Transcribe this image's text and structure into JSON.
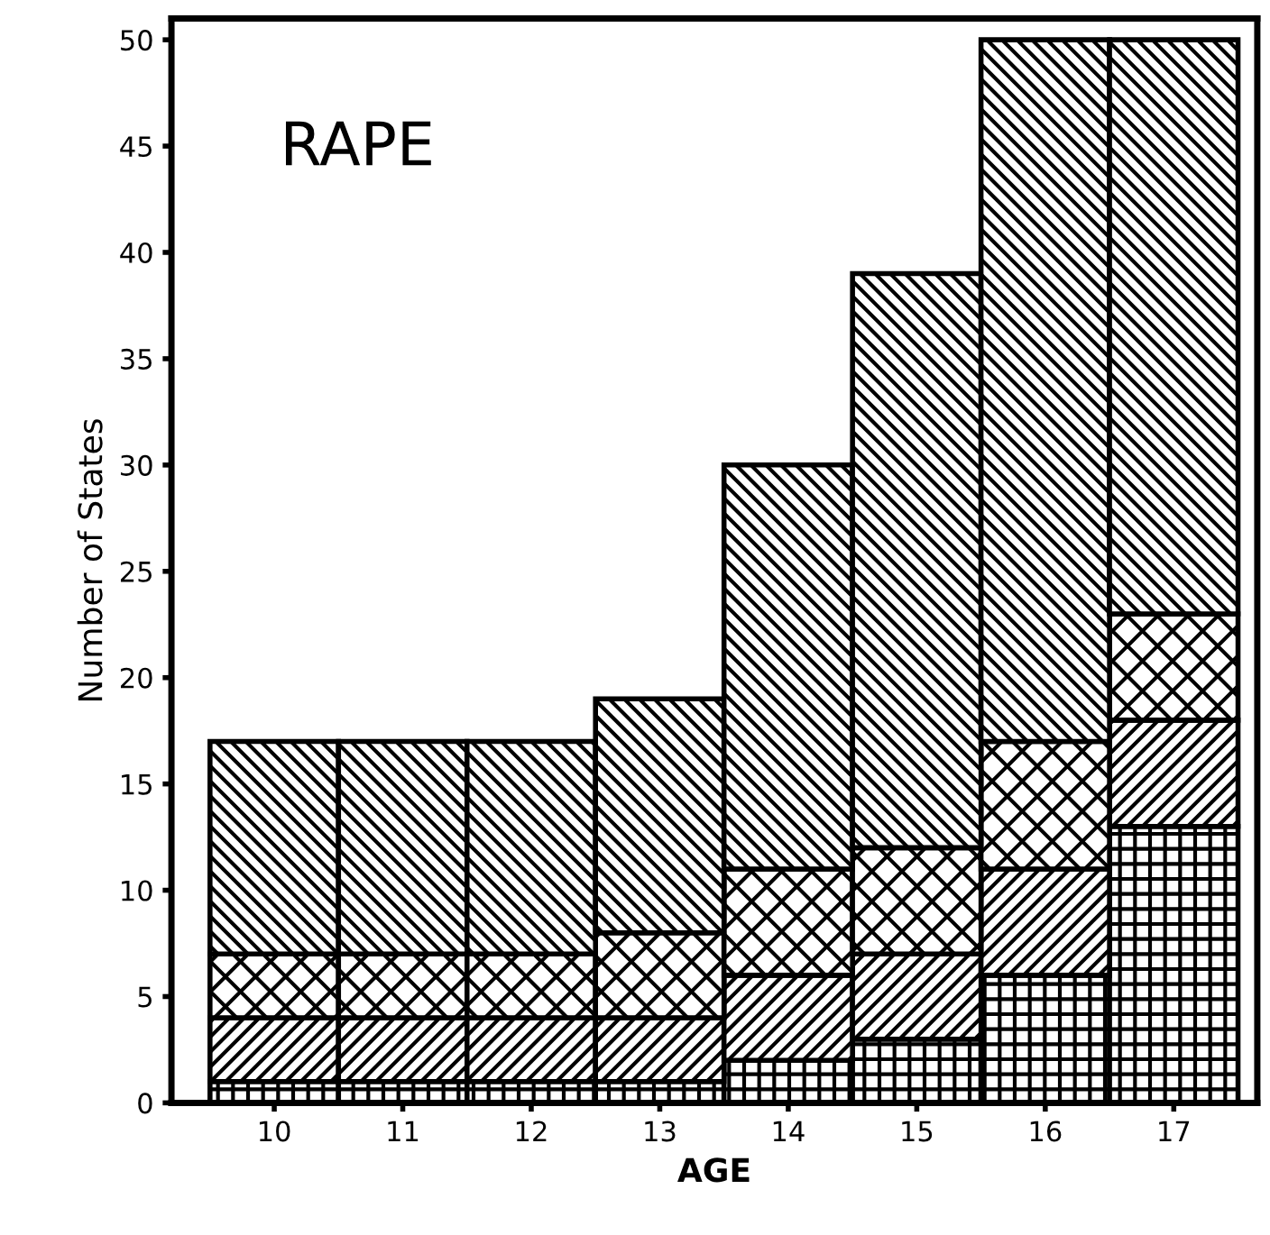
{
  "chart_data": {
    "type": "bar",
    "title": "RAPE",
    "xlabel": "AGE",
    "ylabel": "Number of States",
    "categories": [
      "10",
      "11",
      "12",
      "13",
      "14",
      "15",
      "16",
      "17"
    ],
    "stacked": true,
    "series": [
      {
        "color": "#000000",
        "values": [
          1,
          1,
          1,
          1,
          2,
          3,
          6,
          13
        ]
      },
      {
        "color": "#000000",
        "values": [
          3,
          3,
          3,
          3,
          4,
          4,
          5,
          5
        ]
      },
      {
        "color": "#000000",
        "values": [
          3,
          3,
          3,
          4,
          5,
          5,
          6,
          5
        ]
      },
      {
        "color": "#000000",
        "values": [
          10,
          10,
          10,
          11,
          19,
          27,
          33,
          27
        ]
      }
    ],
    "ylim": [
      0,
      51
    ],
    "yticks": [
      0,
      5,
      10,
      15,
      20,
      25,
      30,
      35,
      40,
      45,
      50
    ],
    "grid": false,
    "legend": false
  }
}
